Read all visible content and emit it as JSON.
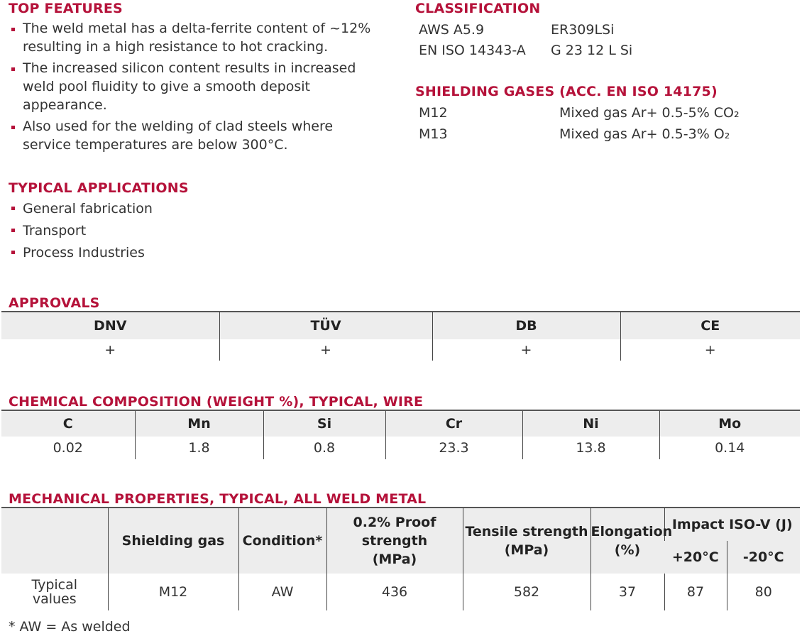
{
  "top_features": {
    "title": "TOP FEATURES",
    "items": [
      [
        "The weld metal has a delta-ferrite content of ~12%",
        "resulting in a high resistance to hot cracking."
      ],
      [
        "The increased silicon content results in increased",
        "weld pool fluidity to give a smooth deposit",
        "appearance."
      ],
      [
        "Also used for the welding of clad steels where",
        "service temperatures are below 300°C."
      ]
    ]
  },
  "typical_applications": {
    "title": "TYPICAL APPLICATIONS",
    "items": [
      "General fabrication",
      "Transport",
      "Process Industries"
    ]
  },
  "classification": {
    "title": "CLASSIFICATION",
    "rows": [
      {
        "standard": "AWS A5.9",
        "value": "ER309LSi"
      },
      {
        "standard": "EN ISO 14343-A",
        "value": "G 23 12 L Si"
      }
    ]
  },
  "shielding_gases": {
    "title": "SHIELDING GASES (ACC. EN ISO 14175)",
    "rows": [
      {
        "code": "M12",
        "desc": "Mixed gas Ar+ 0.5-5% CO₂"
      },
      {
        "code": "M13",
        "desc": "Mixed gas Ar+ 0.5-3% O₂"
      }
    ]
  },
  "approvals": {
    "title": "APPROVALS",
    "headers": [
      "DNV",
      "TÜV",
      "DB",
      "CE"
    ],
    "values": [
      "+",
      "+",
      "+",
      "+"
    ]
  },
  "chemical": {
    "title": "CHEMICAL COMPOSITION (WEIGHT %), TYPICAL, WIRE",
    "headers": [
      "C",
      "Mn",
      "Si",
      "Cr",
      "Ni",
      "Mo"
    ],
    "values": [
      "0.02",
      "1.8",
      "0.8",
      "23.3",
      "13.8",
      "0.14"
    ]
  },
  "mechanical": {
    "title": "MECHANICAL PROPERTIES, TYPICAL, ALL WELD METAL",
    "headers": {
      "shielding_gas": "Shielding gas",
      "condition": "Condition*",
      "proof": [
        "0.2% Proof",
        "strength",
        "(MPa)"
      ],
      "tensile": [
        "Tensile strength",
        "(MPa)"
      ],
      "elongation": [
        "Elongation",
        "(%)"
      ],
      "impact": "Impact ISO-V (J)",
      "temp1": "+20°C",
      "temp2": "-20°C"
    },
    "row": {
      "label": [
        "Typical",
        "values"
      ],
      "shielding_gas": "M12",
      "condition": "AW",
      "proof": "436",
      "tensile": "582",
      "elongation": "37",
      "impact1": "87",
      "impact2": "80"
    },
    "footnote": "* AW = As welded"
  }
}
